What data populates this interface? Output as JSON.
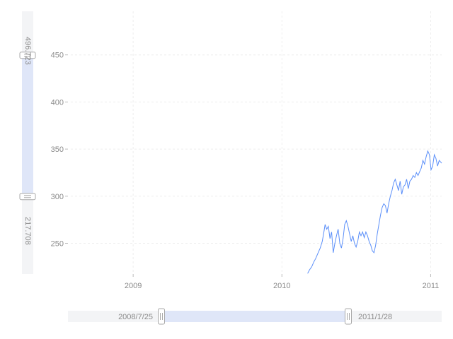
{
  "chart_data": {
    "type": "line",
    "title": "",
    "xlabel": "",
    "ylabel": "",
    "x_ticks": [
      "2009",
      "2010",
      "2011"
    ],
    "y_ticks": [
      250,
      300,
      350,
      400,
      450
    ],
    "xlim": [
      "2008-07-25",
      "2011-01-28"
    ],
    "ylim": [
      217.708,
      496.723
    ],
    "grid": true,
    "series": [
      {
        "color": "#5b8ff9",
        "points": [
          [
            "2010-03-05",
            218
          ],
          [
            "2010-03-10",
            222
          ],
          [
            "2010-03-15",
            225
          ],
          [
            "2010-03-20",
            230
          ],
          [
            "2010-03-25",
            234
          ],
          [
            "2010-03-31",
            240
          ],
          [
            "2010-04-05",
            245
          ],
          [
            "2010-04-10",
            252
          ],
          [
            "2010-04-14",
            262
          ],
          [
            "2010-04-17",
            270
          ],
          [
            "2010-04-21",
            265
          ],
          [
            "2010-04-25",
            268
          ],
          [
            "2010-04-29",
            255
          ],
          [
            "2010-05-03",
            262
          ],
          [
            "2010-05-07",
            240
          ],
          [
            "2010-05-11",
            250
          ],
          [
            "2010-05-15",
            258
          ],
          [
            "2010-05-19",
            265
          ],
          [
            "2010-05-23",
            250
          ],
          [
            "2010-05-27",
            245
          ],
          [
            "2010-05-31",
            255
          ],
          [
            "2010-06-04",
            270
          ],
          [
            "2010-06-08",
            274
          ],
          [
            "2010-06-12",
            268
          ],
          [
            "2010-06-16",
            260
          ],
          [
            "2010-06-20",
            252
          ],
          [
            "2010-06-24",
            258
          ],
          [
            "2010-06-28",
            250
          ],
          [
            "2010-07-02",
            246
          ],
          [
            "2010-07-06",
            252
          ],
          [
            "2010-07-10",
            262
          ],
          [
            "2010-07-14",
            258
          ],
          [
            "2010-07-18",
            262
          ],
          [
            "2010-07-22",
            256
          ],
          [
            "2010-07-26",
            262
          ],
          [
            "2010-07-30",
            258
          ],
          [
            "2010-08-03",
            252
          ],
          [
            "2010-08-07",
            248
          ],
          [
            "2010-08-11",
            242
          ],
          [
            "2010-08-15",
            240
          ],
          [
            "2010-08-19",
            248
          ],
          [
            "2010-08-23",
            260
          ],
          [
            "2010-08-27",
            270
          ],
          [
            "2010-08-31",
            280
          ],
          [
            "2010-09-04",
            288
          ],
          [
            "2010-09-08",
            292
          ],
          [
            "2010-09-12",
            290
          ],
          [
            "2010-09-16",
            282
          ],
          [
            "2010-09-20",
            292
          ],
          [
            "2010-09-24",
            300
          ],
          [
            "2010-09-28",
            306
          ],
          [
            "2010-10-02",
            314
          ],
          [
            "2010-10-06",
            318
          ],
          [
            "2010-10-10",
            312
          ],
          [
            "2010-10-14",
            306
          ],
          [
            "2010-10-18",
            316
          ],
          [
            "2010-10-22",
            302
          ],
          [
            "2010-10-26",
            310
          ],
          [
            "2010-10-30",
            312
          ],
          [
            "2010-11-03",
            318
          ],
          [
            "2010-11-07",
            308
          ],
          [
            "2010-11-11",
            316
          ],
          [
            "2010-11-15",
            318
          ],
          [
            "2010-11-19",
            322
          ],
          [
            "2010-11-23",
            320
          ],
          [
            "2010-11-27",
            325
          ],
          [
            "2010-12-01",
            322
          ],
          [
            "2010-12-05",
            326
          ],
          [
            "2010-12-09",
            330
          ],
          [
            "2010-12-13",
            338
          ],
          [
            "2010-12-17",
            334
          ],
          [
            "2010-12-21",
            342
          ],
          [
            "2010-12-25",
            348
          ],
          [
            "2010-12-29",
            344
          ],
          [
            "2011-01-02",
            328
          ],
          [
            "2011-01-06",
            332
          ],
          [
            "2011-01-10",
            344
          ],
          [
            "2011-01-14",
            340
          ],
          [
            "2011-01-18",
            332
          ],
          [
            "2011-01-22",
            338
          ],
          [
            "2011-01-28",
            335
          ]
        ]
      }
    ]
  },
  "zoom": {
    "y_max_label": "496.723",
    "y_min_label": "217.708",
    "x_start_label": "2008/7/25",
    "x_end_label": "2011/1/28",
    "y_window": [
      300,
      450
    ],
    "x_window": [
      0,
      0.71
    ]
  },
  "colors": {
    "line": "#5b8ff9",
    "slider_fill": "#dfe6f8",
    "slider_track": "#f3f4f6",
    "handle": "#ffffff",
    "handle_border": "#a8a8a8",
    "grid": "#eeeeee",
    "text": "#8a8a8a"
  }
}
